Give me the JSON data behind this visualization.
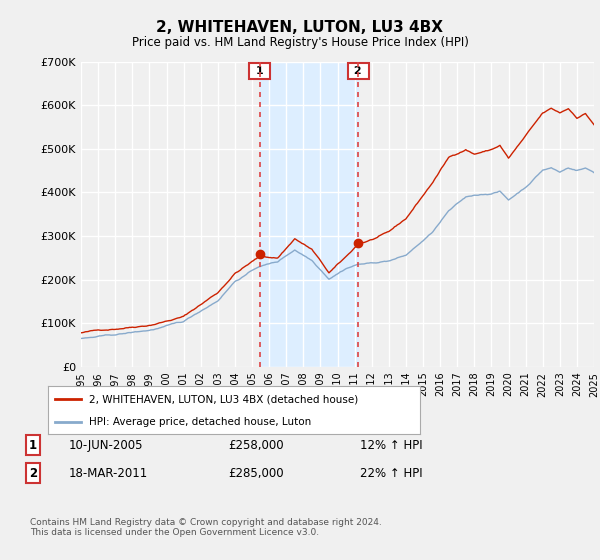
{
  "title": "2, WHITEHAVEN, LUTON, LU3 4BX",
  "subtitle": "Price paid vs. HM Land Registry's House Price Index (HPI)",
  "ylim": [
    0,
    700000
  ],
  "yticks": [
    0,
    100000,
    200000,
    300000,
    400000,
    500000,
    600000,
    700000
  ],
  "ytick_labels": [
    "£0",
    "£100K",
    "£200K",
    "£300K",
    "£400K",
    "£500K",
    "£600K",
    "£700K"
  ],
  "background_color": "#f0f0f0",
  "plot_bg_color": "#f0f0f0",
  "grid_color": "#ffffff",
  "sale1_date": 2005.44,
  "sale1_price": 258000,
  "sale2_date": 2011.21,
  "sale2_price": 285000,
  "shade_color": "#ddeeff",
  "box_border_color": "#cc3333",
  "red_line_color": "#cc2200",
  "blue_line_color": "#88aacc",
  "legend_red_label": "2, WHITEHAVEN, LUTON, LU3 4BX (detached house)",
  "legend_blue_label": "HPI: Average price, detached house, Luton",
  "table_row1": [
    "1",
    "10-JUN-2005",
    "£258,000",
    "12% ↑ HPI"
  ],
  "table_row2": [
    "2",
    "18-MAR-2011",
    "£285,000",
    "22% ↑ HPI"
  ],
  "footnote": "Contains HM Land Registry data © Crown copyright and database right 2024.\nThis data is licensed under the Open Government Licence v3.0.",
  "xmin": 1995,
  "xmax": 2025,
  "xticks": [
    1995,
    1996,
    1997,
    1998,
    1999,
    2000,
    2001,
    2002,
    2003,
    2004,
    2005,
    2006,
    2007,
    2008,
    2009,
    2010,
    2011,
    2012,
    2013,
    2014,
    2015,
    2016,
    2017,
    2018,
    2019,
    2020,
    2021,
    2022,
    2023,
    2024,
    2025
  ]
}
